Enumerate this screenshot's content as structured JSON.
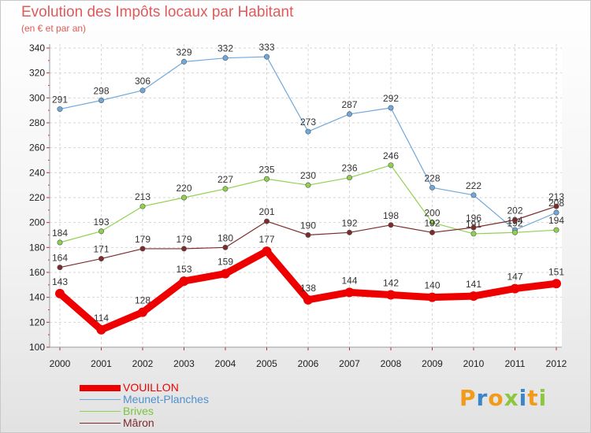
{
  "header": {
    "title": "Evolution des Impôts locaux par Habitant",
    "subtitle": "(en € et par an)"
  },
  "logo": {
    "text": "Proxiti"
  },
  "chart_data": {
    "type": "line",
    "title": "Evolution des Impôts locaux par Habitant",
    "subtitle": "(en € et par an)",
    "x": [
      2000,
      2001,
      2002,
      2003,
      2004,
      2005,
      2006,
      2007,
      2008,
      2009,
      2010,
      2011,
      2012
    ],
    "ylim": [
      100,
      340
    ],
    "yticks": [
      100,
      120,
      140,
      160,
      180,
      200,
      220,
      240,
      260,
      280,
      300,
      320,
      340
    ],
    "grid": true,
    "legend_position": "bottom-left",
    "series": [
      {
        "name": "VOUILLON",
        "color": "#ee0000",
        "emphasis": true,
        "values": [
          143,
          114,
          128,
          153,
          159,
          177,
          138,
          144,
          142,
          140,
          141,
          147,
          151
        ]
      },
      {
        "name": "Meunet-Planches",
        "color": "#6fa8dc",
        "values": [
          291,
          298,
          306,
          329,
          332,
          333,
          273,
          287,
          292,
          228,
          222,
          194,
          208
        ]
      },
      {
        "name": "Brives",
        "color": "#8fd14f",
        "values": [
          184,
          193,
          213,
          220,
          227,
          235,
          230,
          236,
          246,
          200,
          191,
          192,
          194
        ]
      },
      {
        "name": "Mâron",
        "color": "#7b2b2b",
        "values": [
          164,
          171,
          179,
          179,
          180,
          201,
          190,
          192,
          198,
          192,
          196,
          202,
          213
        ]
      }
    ]
  }
}
